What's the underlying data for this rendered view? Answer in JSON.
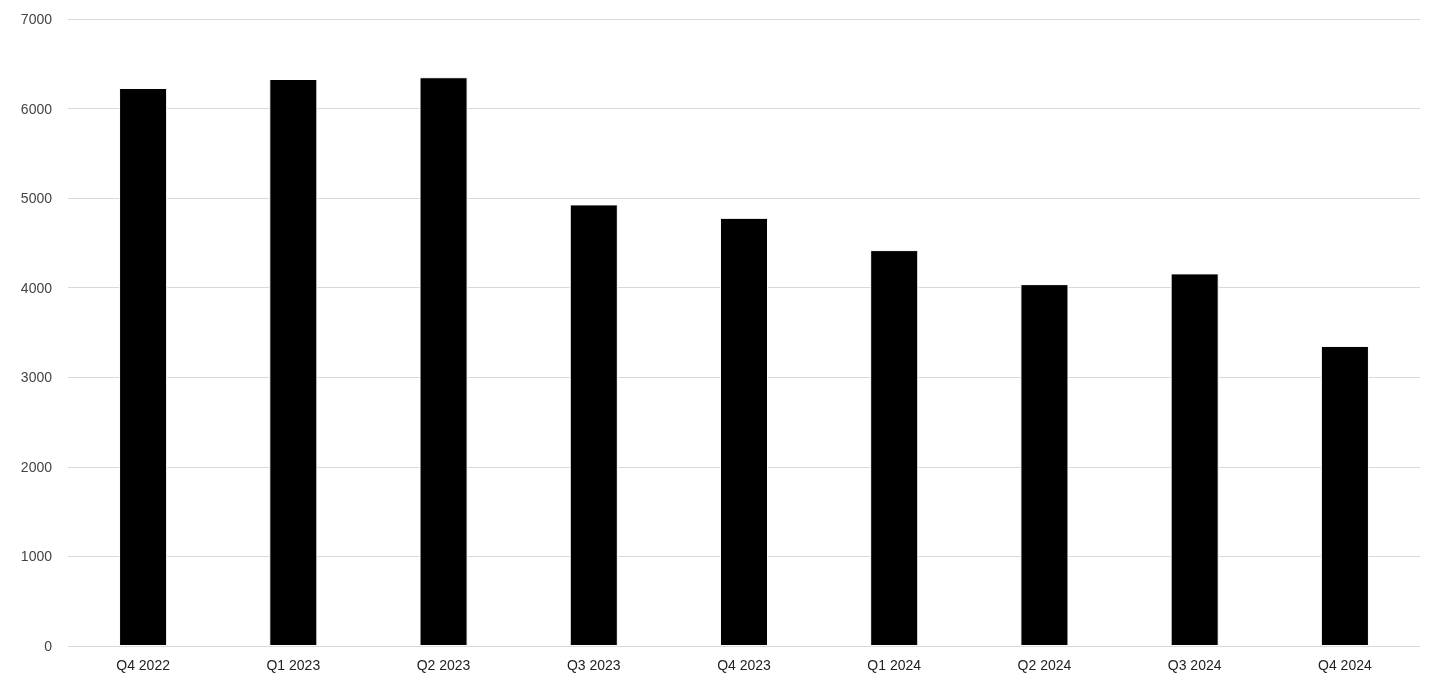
{
  "chart_data": {
    "type": "bar",
    "categories": [
      "Q4 2022",
      "Q1 2023",
      "Q2 2023",
      "Q3 2023",
      "Q4 2023",
      "Q1 2024",
      "Q2 2024",
      "Q3 2024",
      "Q4 2024"
    ],
    "values": [
      6230,
      6330,
      6350,
      4930,
      4780,
      4420,
      4040,
      4160,
      3350
    ],
    "color": "#000000",
    "ylim": [
      0,
      7000
    ],
    "yticks": [
      0,
      1000,
      2000,
      3000,
      4000,
      5000,
      6000,
      7000
    ],
    "grid": "y"
  }
}
